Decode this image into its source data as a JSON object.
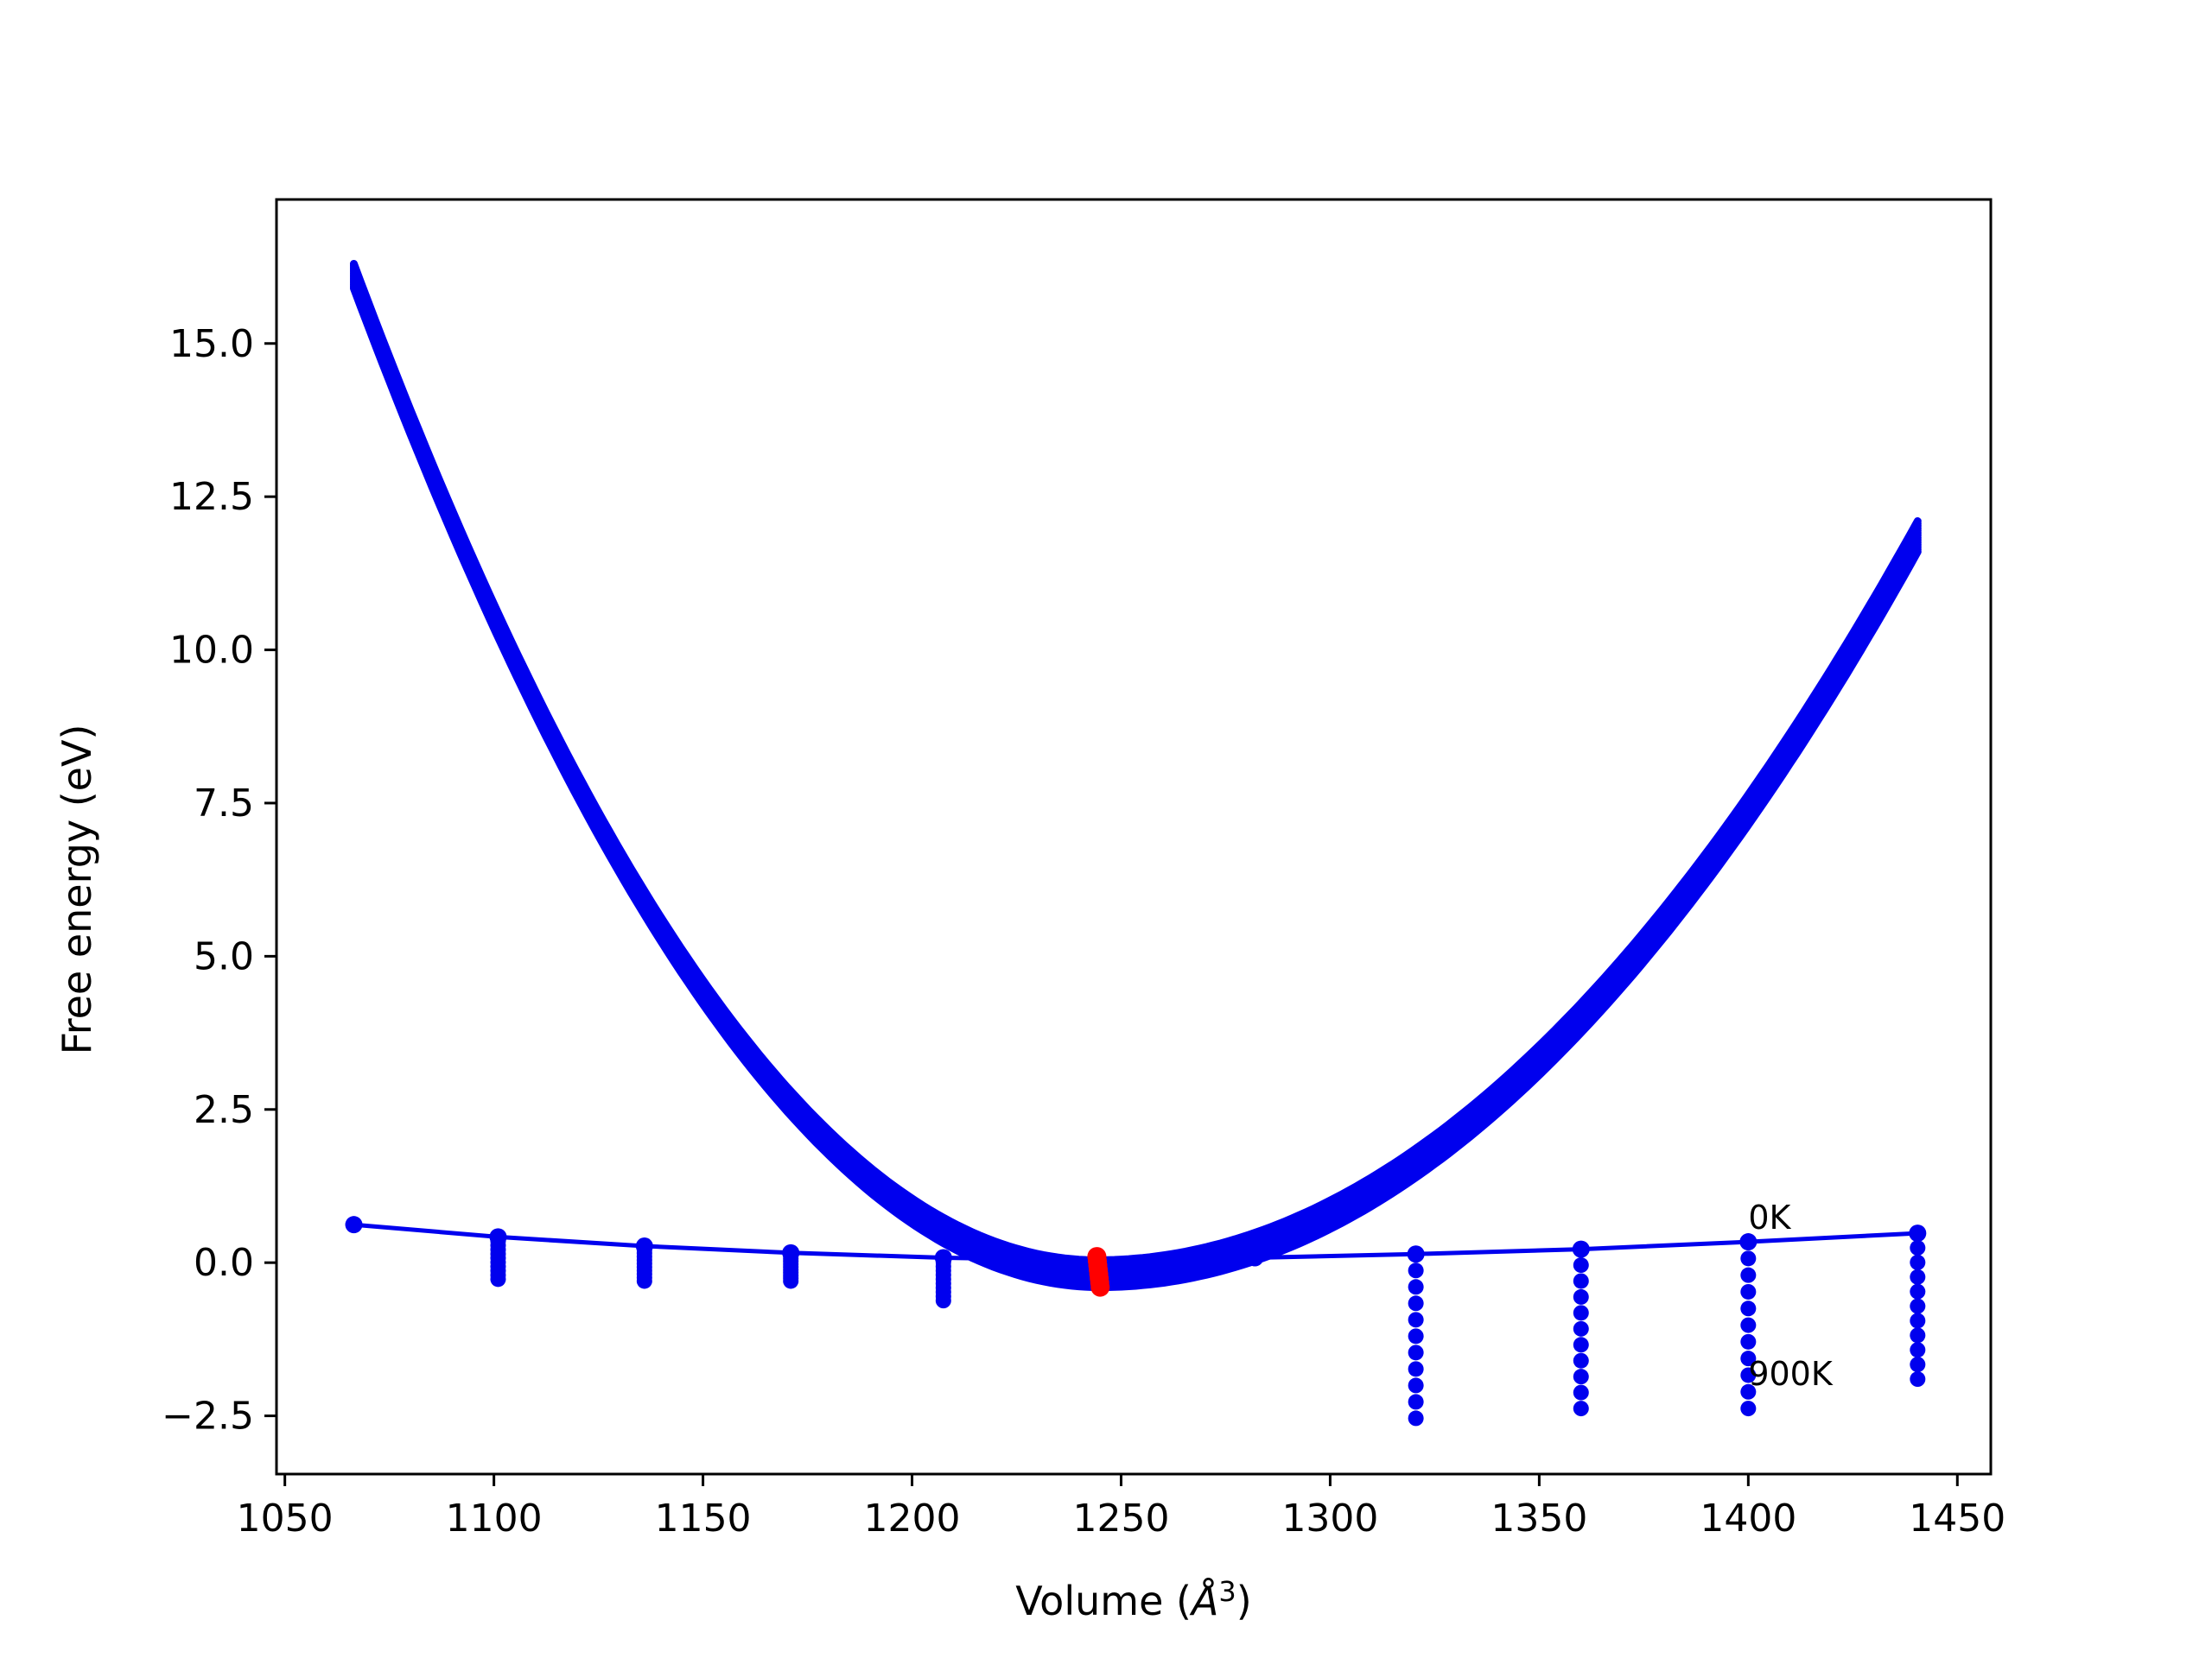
{
  "chart_data": {
    "type": "scatter",
    "xlabel": "Volume (",
    "xlabel_unit": "Å",
    "xlabel_exp": "3",
    "xlabel_close": ")",
    "ylabel": "Free energy (eV)",
    "xlim": [
      1048,
      1458
    ],
    "ylim": [
      -3.45,
      17.35
    ],
    "xticks": [
      1050,
      1100,
      1150,
      1200,
      1250,
      1300,
      1350,
      1400,
      1450
    ],
    "yticks": [
      -2.5,
      0.0,
      2.5,
      5.0,
      7.5,
      10.0,
      12.5,
      15.0
    ],
    "ytick_labels": [
      "−2.5",
      "0.0",
      "2.5",
      "5.0",
      "7.5",
      "10.0",
      "12.5",
      "15.0"
    ],
    "grid": false,
    "colors": {
      "series": "#0000ee",
      "minimum": "#ff0000",
      "frame": "#000000"
    },
    "volumes": [
      1066.5,
      1101.0,
      1136.0,
      1171.0,
      1207.5,
      1244.5,
      1282.0,
      1320.5,
      1360.0,
      1400.0,
      1440.5
    ],
    "energy_0K": [
      0.62,
      0.42,
      0.27,
      0.16,
      0.08,
      0.04,
      0.08,
      0.14,
      0.22,
      0.34,
      0.48
    ],
    "energy_900K_vertical_points": [
      {
        "volume": 1101.0,
        "min": -0.27
      },
      {
        "volume": 1136.0,
        "min": -0.3
      },
      {
        "volume": 1171.0,
        "min": -0.3
      },
      {
        "volume": 1207.5,
        "min": -0.62
      },
      {
        "volume": 1320.5,
        "min": -2.54
      },
      {
        "volume": 1360.0,
        "min": -2.38
      },
      {
        "volume": 1400.0,
        "min": -2.38
      },
      {
        "volume": 1440.5,
        "min": -1.9
      }
    ],
    "fit_curves": {
      "description_values": "parabolic fits, one per temperature",
      "v0_range": [
        1244.2,
        1245.0
      ],
      "e0_range": [
        0.04,
        -0.4
      ],
      "left_endpoint": {
        "volume": 1066.5,
        "energy": [
          16.3,
          15.9
        ]
      },
      "right_endpoint": {
        "volume": 1440.5,
        "energy": [
          12.1,
          11.6
        ]
      }
    },
    "minima": {
      "volume": 1244.5,
      "energy": [
        0.1,
        -0.4
      ]
    },
    "annotations": [
      {
        "text": "0K",
        "volume": 1400.0,
        "energy": 0.55
      },
      {
        "text": "900K",
        "volume": 1400.0,
        "energy": -2.0
      }
    ]
  }
}
